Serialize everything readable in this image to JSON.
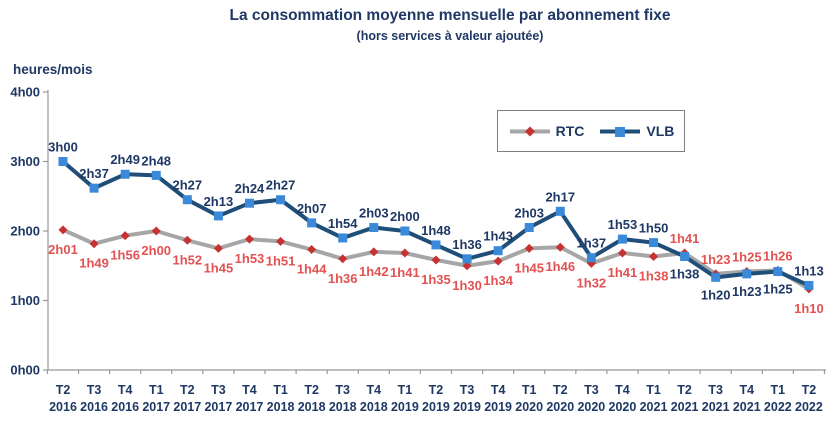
{
  "chart_data": {
    "type": "line",
    "title": "La consommation moyenne mensuelle par abonnement fixe",
    "subtitle": "(hors services à valeur ajoutée)",
    "ylabel": "heures/mois",
    "y_ticks": [
      "4h00",
      "3h00",
      "2h00",
      "1h00",
      "0h00"
    ],
    "ylim_minutes": [
      0,
      240
    ],
    "grid": false,
    "legend_position": "top-right-inside",
    "categories": [
      {
        "quarter": "T2",
        "year": "2016"
      },
      {
        "quarter": "T3",
        "year": "2016"
      },
      {
        "quarter": "T4",
        "year": "2016"
      },
      {
        "quarter": "T1",
        "year": "2017"
      },
      {
        "quarter": "T2",
        "year": "2017"
      },
      {
        "quarter": "T3",
        "year": "2017"
      },
      {
        "quarter": "T4",
        "year": "2017"
      },
      {
        "quarter": "T1",
        "year": "2018"
      },
      {
        "quarter": "T2",
        "year": "2018"
      },
      {
        "quarter": "T3",
        "year": "2018"
      },
      {
        "quarter": "T4",
        "year": "2018"
      },
      {
        "quarter": "T1",
        "year": "2019"
      },
      {
        "quarter": "T2",
        "year": "2019"
      },
      {
        "quarter": "T3",
        "year": "2019"
      },
      {
        "quarter": "T4",
        "year": "2019"
      },
      {
        "quarter": "T1",
        "year": "2020"
      },
      {
        "quarter": "T2",
        "year": "2020"
      },
      {
        "quarter": "T3",
        "year": "2020"
      },
      {
        "quarter": "T4",
        "year": "2020"
      },
      {
        "quarter": "T1",
        "year": "2021"
      },
      {
        "quarter": "T2",
        "year": "2021"
      },
      {
        "quarter": "T3",
        "year": "2021"
      },
      {
        "quarter": "T4",
        "year": "2021"
      },
      {
        "quarter": "T1",
        "year": "2022"
      },
      {
        "quarter": "T2",
        "year": "2022"
      }
    ],
    "series": [
      {
        "name": "RTC",
        "marker": "diamond",
        "color_line": "#A6A6A6",
        "color_marker": "#C63131",
        "color_label": "#E25252",
        "values_minutes": [
          121,
          109,
          116,
          120,
          112,
          105,
          113,
          111,
          104,
          96,
          102,
          101,
          95,
          90,
          94,
          105,
          106,
          92,
          101,
          98,
          101,
          83,
          85,
          86,
          70
        ],
        "labels": [
          "2h01",
          "1h49",
          "1h56",
          "2h00",
          "1h52",
          "1h45",
          "1h53",
          "1h51",
          "1h44",
          "1h36",
          "1h42",
          "1h41",
          "1h35",
          "1h30",
          "1h34",
          "1h45",
          "1h46",
          "1h32",
          "1h41",
          "1h38",
          "1h41",
          "1h23",
          "1h25",
          "1h26",
          "1h10"
        ]
      },
      {
        "name": "VLB",
        "marker": "square",
        "color_line": "#1F4E79",
        "color_marker": "#3B8AD9",
        "color_label": "#1F3864",
        "values_minutes": [
          180,
          157,
          169,
          168,
          147,
          133,
          144,
          147,
          127,
          114,
          123,
          120,
          108,
          96,
          103,
          123,
          137,
          97,
          113,
          110,
          98,
          80,
          83,
          85,
          73
        ],
        "labels": [
          "3h00",
          "2h37",
          "2h49",
          "2h48",
          "2h27",
          "2h13",
          "2h24",
          "2h27",
          "2h07",
          "1h54",
          "2h03",
          "2h00",
          "1h48",
          "1h36",
          "1h43",
          "2h03",
          "2h17",
          "1h37",
          "1h53",
          "1h50",
          "1h38",
          "1h20",
          "1h23",
          "1h25",
          "1h13"
        ]
      }
    ]
  }
}
